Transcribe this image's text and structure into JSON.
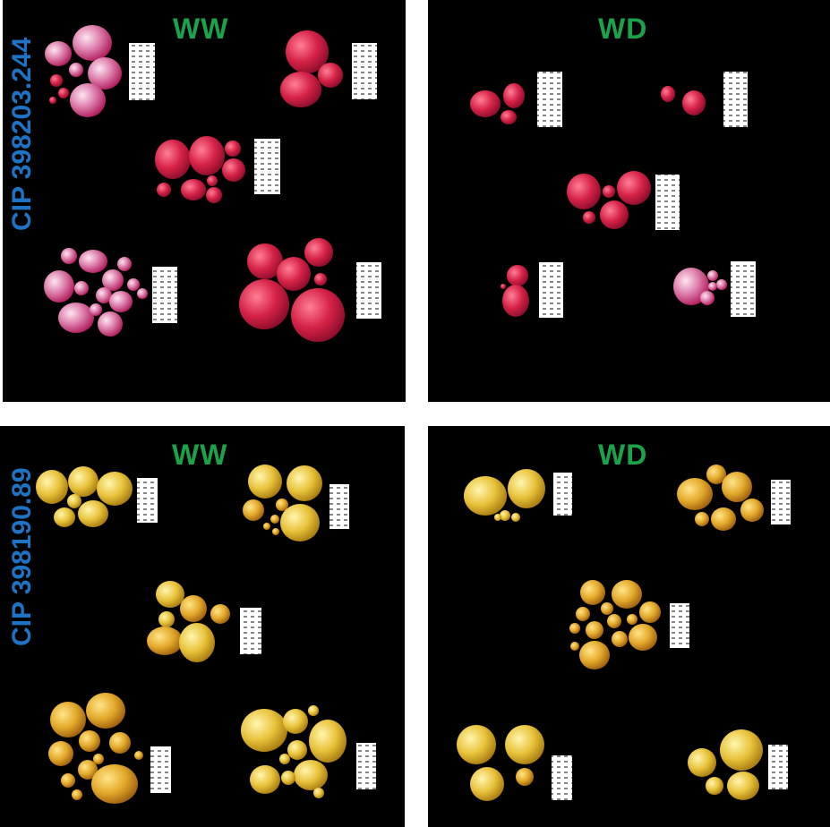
{
  "genotypes": {
    "top": "CIP 398203.244",
    "bottom": "CIP 398190.89"
  },
  "conditions": {
    "top_left": "WW",
    "top_right": "WD",
    "bottom_left": "WW",
    "bottom_right": "WD"
  },
  "colors": {
    "background": "#000000",
    "condition_label": "#1aa34a",
    "genotype_label": "#1f73c4",
    "red_tuber": "#d42a4a",
    "pink_tuber": "#e8a0c0",
    "yellow_tuber": "#e8c540",
    "scale_ruler": "#ffffff"
  },
  "objects": {
    "tuber_groups_per_panel": 5,
    "scale_rulers_per_panel": 5
  }
}
